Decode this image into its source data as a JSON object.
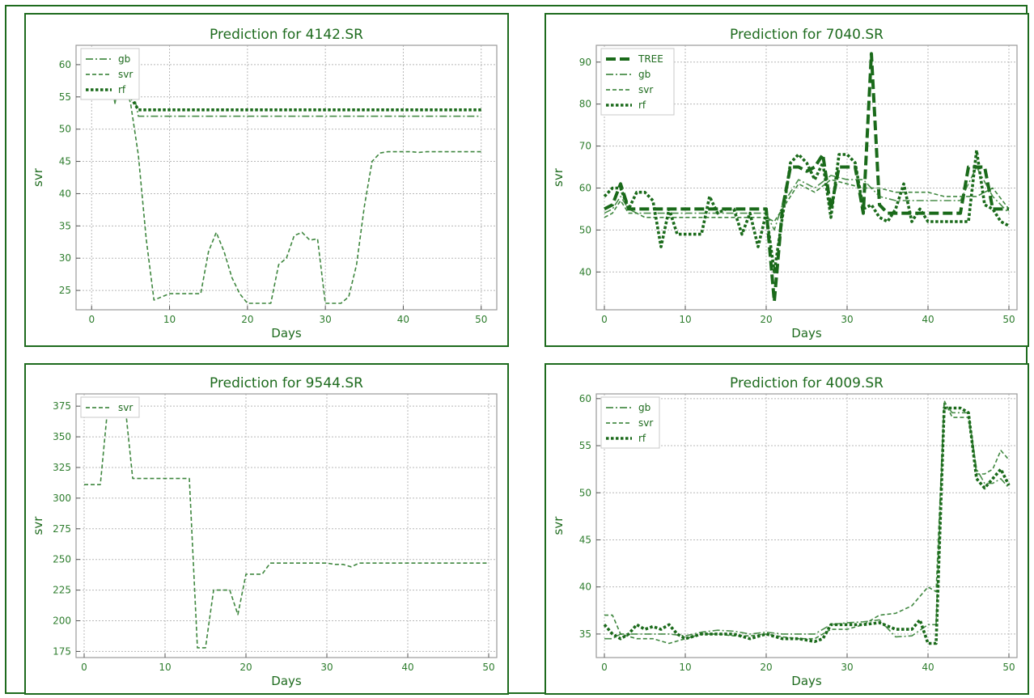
{
  "chart_data": [
    {
      "type": "line",
      "title": "Prediction for 4142.SR",
      "xlabel": "Days",
      "ylabel": "svr",
      "xlim": [
        -2,
        52
      ],
      "ylim": [
        22,
        63
      ],
      "xticks": [
        0,
        10,
        20,
        30,
        40,
        50
      ],
      "yticks": [
        25,
        30,
        35,
        40,
        45,
        50,
        55,
        60
      ],
      "grid": true,
      "legend_position": "top-left",
      "series": [
        {
          "name": "gb",
          "style": "dashdot",
          "x": [
            0,
            2,
            3,
            4,
            5,
            6,
            50
          ],
          "y": [
            61,
            60.5,
            54,
            60,
            58,
            52,
            52
          ]
        },
        {
          "name": "svr",
          "style": "dashed",
          "x": [
            0,
            1,
            2,
            3,
            4,
            5,
            6,
            7,
            8,
            9,
            10,
            14,
            15,
            16,
            17,
            18,
            19,
            20,
            21,
            22,
            23,
            24,
            25,
            26,
            27,
            28,
            29,
            30,
            31,
            32,
            33,
            34,
            35,
            36,
            37,
            38,
            39,
            40,
            41,
            42,
            43,
            44,
            45,
            46,
            47,
            48,
            49,
            50
          ],
          "y": [
            61,
            60,
            59,
            56,
            58,
            54,
            46,
            33,
            23.5,
            24,
            24.5,
            24.5,
            31,
            34,
            31,
            27,
            24.5,
            23,
            23,
            23,
            23,
            29,
            30,
            33.5,
            34,
            32.8,
            33,
            23,
            23,
            23,
            24,
            29,
            38,
            45,
            46.3,
            46.5,
            46.5,
            46.5,
            46.5,
            46.4,
            46.5,
            46.5,
            46.5,
            46.5,
            46.5,
            46.5,
            46.5,
            46.5
          ]
        },
        {
          "name": "rf",
          "style": "dotted",
          "x": [
            0,
            1,
            2,
            3,
            4,
            5,
            6,
            50
          ],
          "y": [
            61,
            60,
            59,
            56,
            58,
            55,
            53,
            53
          ]
        }
      ]
    },
    {
      "type": "line",
      "title": "Prediction for 7040.SR",
      "xlabel": "Days",
      "ylabel": "svr",
      "xlim": [
        -1,
        51
      ],
      "ylim": [
        31,
        94
      ],
      "xticks": [
        0,
        10,
        20,
        30,
        40,
        50
      ],
      "yticks": [
        40,
        50,
        60,
        70,
        80,
        90
      ],
      "grid": true,
      "legend_position": "top-left",
      "series": [
        {
          "name": "TREE",
          "style": "thick-dashed",
          "x": [
            0,
            1,
            2,
            3,
            4,
            5,
            6,
            7,
            8,
            9,
            10,
            11,
            12,
            13,
            14,
            15,
            16,
            17,
            18,
            19,
            20,
            21,
            22,
            23,
            24,
            25,
            26,
            27,
            28,
            29,
            30,
            31,
            32,
            33,
            34,
            35,
            36,
            37,
            38,
            39,
            40,
            41,
            42,
            43,
            44,
            45,
            46,
            47,
            48,
            49,
            50
          ],
          "y": [
            55,
            56,
            61,
            55,
            55,
            55,
            55,
            55,
            55,
            55,
            55,
            55,
            55,
            55,
            55,
            55,
            55,
            55,
            55,
            55,
            55,
            33,
            55,
            65,
            65,
            64,
            65,
            68,
            55,
            65,
            65,
            65,
            54,
            92,
            56,
            54,
            54,
            54,
            54,
            54,
            54,
            54,
            54,
            54,
            54,
            65,
            65,
            65,
            55,
            55,
            55
          ]
        },
        {
          "name": "gb",
          "style": "dashdot",
          "x": [
            0,
            1,
            2,
            3,
            4,
            5,
            6,
            8,
            10,
            12,
            14,
            16,
            18,
            20,
            21,
            22,
            24,
            26,
            28,
            30,
            32,
            34,
            36,
            38,
            40,
            42,
            44,
            46,
            48,
            50
          ],
          "y": [
            54,
            55,
            58,
            55,
            54,
            54,
            54,
            54,
            54,
            54,
            54,
            54,
            54,
            54,
            50,
            56,
            62,
            60,
            63,
            62,
            62,
            58,
            57,
            57,
            57,
            57,
            57,
            65,
            58,
            54
          ]
        },
        {
          "name": "svr",
          "style": "dashed",
          "x": [
            0,
            1,
            2,
            3,
            4,
            5,
            6,
            8,
            10,
            12,
            14,
            16,
            18,
            20,
            21,
            22,
            24,
            26,
            28,
            30,
            32,
            34,
            36,
            38,
            40,
            42,
            44,
            46,
            48,
            50
          ],
          "y": [
            53,
            54,
            57,
            54,
            54,
            53,
            53,
            53,
            53,
            53,
            53,
            53,
            53,
            53,
            52,
            55,
            61,
            59,
            62,
            61,
            60,
            60,
            59,
            59,
            59,
            58,
            58,
            58,
            60,
            55
          ]
        },
        {
          "name": "rf",
          "style": "dotted",
          "x": [
            0,
            1,
            2,
            3,
            4,
            5,
            6,
            7,
            8,
            9,
            10,
            11,
            12,
            13,
            14,
            15,
            16,
            17,
            18,
            19,
            20,
            21,
            22,
            23,
            24,
            25,
            26,
            27,
            28,
            29,
            30,
            31,
            32,
            33,
            34,
            35,
            36,
            37,
            38,
            39,
            40,
            41,
            42,
            43,
            44,
            45,
            46,
            47,
            48,
            49,
            50
          ],
          "y": [
            58,
            60,
            60,
            55,
            59,
            59,
            57,
            46,
            55,
            49,
            49,
            49,
            49,
            58,
            54,
            55,
            55,
            49,
            54,
            46,
            54,
            40,
            53,
            66,
            68,
            66,
            62,
            66,
            53,
            68,
            68,
            66,
            55,
            56,
            53,
            52,
            55,
            61,
            52,
            55,
            52,
            52,
            52,
            52,
            52,
            52,
            69,
            56,
            55,
            52,
            51
          ]
        }
      ]
    },
    {
      "type": "line",
      "title": "Prediction for 9544.SR",
      "xlabel": "Days",
      "ylabel": "svr",
      "xlim": [
        -1,
        51
      ],
      "ylim": [
        170,
        385
      ],
      "xticks": [
        0,
        10,
        20,
        30,
        40,
        50
      ],
      "yticks": [
        175,
        200,
        225,
        250,
        275,
        300,
        325,
        350,
        375
      ],
      "grid": true,
      "legend_position": "top-left",
      "series": [
        {
          "name": "svr",
          "style": "dashed",
          "x": [
            0,
            1,
            2,
            3,
            4,
            5,
            6,
            13,
            14,
            15,
            16,
            17,
            18,
            19,
            20,
            21,
            22,
            23,
            24,
            25,
            30,
            31,
            32,
            33,
            34,
            50
          ],
          "y": [
            311,
            311,
            311,
            380,
            380,
            380,
            316,
            316,
            178,
            178,
            225,
            225,
            225,
            205,
            238,
            238,
            238,
            247,
            247,
            247,
            247,
            246,
            246,
            244,
            247,
            247
          ]
        }
      ]
    },
    {
      "type": "line",
      "title": "Prediction for 4009.SR",
      "xlabel": "Days",
      "ylabel": "svr",
      "xlim": [
        -1,
        51
      ],
      "ylim": [
        32.5,
        60.5
      ],
      "xticks": [
        0,
        10,
        20,
        30,
        40,
        50
      ],
      "yticks": [
        35,
        40,
        45,
        50,
        55,
        60
      ],
      "grid": true,
      "legend_position": "top-left",
      "series": [
        {
          "name": "gb",
          "style": "dashdot",
          "x": [
            0,
            1,
            2,
            4,
            6,
            8,
            10,
            12,
            14,
            16,
            18,
            20,
            22,
            24,
            26,
            28,
            30,
            32,
            34,
            36,
            38,
            40,
            41,
            42,
            43,
            44,
            45,
            46,
            47,
            48,
            49,
            50
          ],
          "y": [
            34.5,
            34.5,
            35,
            35,
            35,
            35,
            34.8,
            35.2,
            35.4,
            35.3,
            35,
            35.2,
            35,
            35,
            35,
            36,
            36.2,
            36.3,
            36.5,
            34.7,
            34.8,
            36,
            36,
            59.5,
            58.5,
            58.5,
            58.5,
            52.5,
            51,
            51,
            51.5,
            50.5
          ]
        },
        {
          "name": "svr",
          "style": "dashed",
          "x": [
            0,
            1,
            2,
            4,
            6,
            8,
            10,
            12,
            14,
            16,
            18,
            20,
            22,
            24,
            26,
            28,
            30,
            32,
            34,
            36,
            38,
            40,
            41,
            42,
            43,
            44,
            45,
            46,
            47,
            48,
            49,
            50
          ],
          "y": [
            37,
            37,
            35,
            34.5,
            34.5,
            34,
            34.5,
            35,
            35,
            34.8,
            34.8,
            35,
            34.7,
            34.5,
            34.5,
            35.5,
            35.5,
            36,
            37,
            37.2,
            38,
            40,
            39.5,
            59.8,
            58,
            58,
            58,
            52,
            52,
            52.5,
            54.5,
            53.5
          ]
        },
        {
          "name": "rf",
          "style": "dotted",
          "x": [
            0,
            1,
            2,
            3,
            4,
            5,
            6,
            7,
            8,
            9,
            10,
            12,
            14,
            16,
            18,
            20,
            22,
            24,
            26,
            27,
            28,
            30,
            32,
            34,
            36,
            38,
            39,
            40,
            41,
            42,
            43,
            44,
            45,
            46,
            47,
            48,
            49,
            50
          ],
          "y": [
            36,
            35,
            34.5,
            35,
            36,
            35.5,
            35.8,
            35.5,
            36,
            35,
            34.5,
            35,
            35,
            35,
            34.5,
            35,
            34.5,
            34.5,
            34.2,
            34.5,
            36,
            36,
            36,
            36.2,
            35.5,
            35.5,
            36.5,
            34,
            34,
            59,
            59,
            59,
            58.5,
            51.5,
            50.5,
            51.5,
            52.5,
            50.8
          ]
        }
      ]
    }
  ]
}
